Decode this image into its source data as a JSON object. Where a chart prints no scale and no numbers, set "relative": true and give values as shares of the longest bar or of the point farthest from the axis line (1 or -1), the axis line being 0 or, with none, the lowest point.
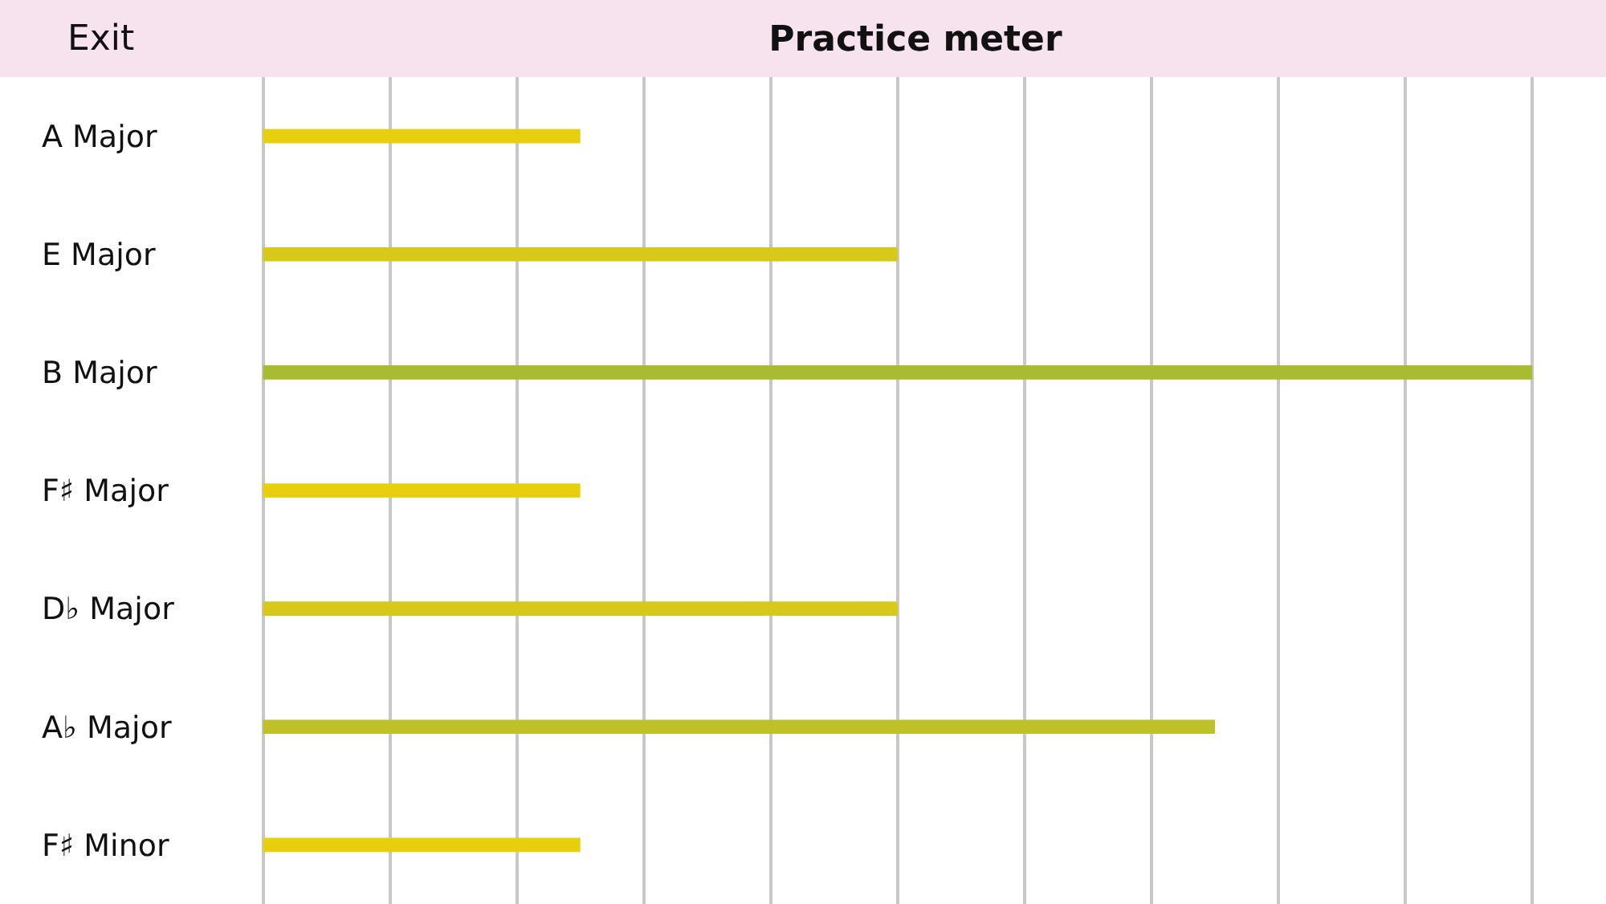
{
  "chart_data": {
    "type": "bar",
    "title": "Practice meter",
    "orientation": "horizontal",
    "relative": true,
    "categories": [
      "A Major",
      "E Major",
      "B Major",
      "F♯ Major",
      "D♭ Major",
      "A♭ Major",
      "F♯ Minor"
    ],
    "values": [
      0.25,
      0.5,
      1,
      0.25,
      0.5,
      0.75,
      0.25
    ],
    "colors": [
      "#e8cf0e",
      "#d6c91a",
      "#a9bb30",
      "#e8cf0e",
      "#d6c91a",
      "#bfc126",
      "#e8cf0e"
    ],
    "grid": "x",
    "annotations": [
      "Exit"
    ]
  }
}
